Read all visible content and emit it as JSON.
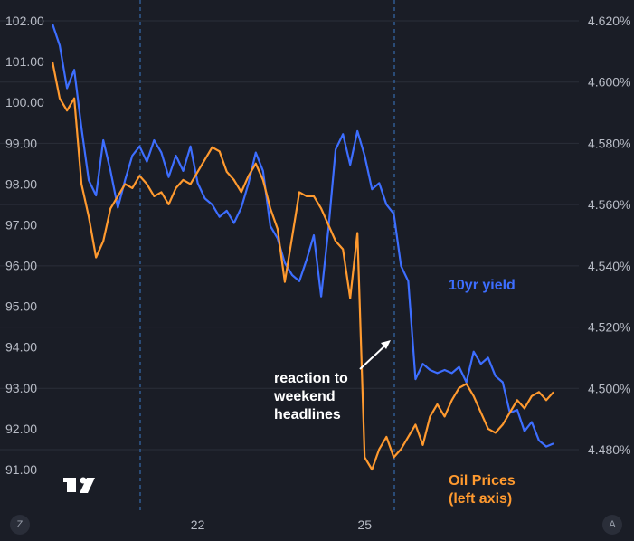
{
  "chart_data": {
    "type": "line",
    "x_ticks": [
      "22",
      "25"
    ],
    "y_left_ticks": [
      "102.00",
      "101.00",
      "100.00",
      "99.00",
      "98.00",
      "97.00",
      "96.00",
      "95.00",
      "94.00",
      "93.00",
      "92.00",
      "91.00"
    ],
    "y_right_ticks": [
      "4.620%",
      "4.600%",
      "4.580%",
      "4.560%",
      "4.540%",
      "4.520%",
      "4.500%",
      "4.480%"
    ],
    "y_left_range": [
      91.0,
      102.0
    ],
    "y_right_range": [
      4.48,
      4.62
    ],
    "grid": "horizontal",
    "session_breaks": "dashed vertical lines",
    "series": [
      {
        "name": "10yr yield",
        "axis": "right",
        "color": "#3d6eff",
        "values": [
          4.619,
          4.612,
          4.598,
          4.604,
          4.585,
          4.568,
          4.563,
          4.581,
          4.571,
          4.559,
          4.568,
          4.576,
          4.579,
          4.574,
          4.581,
          4.577,
          4.569,
          4.576,
          4.571,
          4.579,
          4.567,
          4.562,
          4.56,
          4.556,
          4.558,
          4.554,
          4.559,
          4.567,
          4.577,
          4.571,
          4.553,
          4.549,
          4.541,
          4.537,
          4.535,
          4.542,
          4.55,
          4.53,
          4.552,
          4.578,
          4.583,
          4.573,
          4.584,
          4.576,
          4.565,
          4.567,
          4.56,
          4.557,
          4.54,
          4.535,
          4.503,
          4.508,
          4.506,
          4.505,
          4.506,
          4.505,
          4.507,
          4.502,
          4.512,
          4.508,
          4.51,
          4.504,
          4.502,
          4.492,
          4.493,
          4.486,
          4.489,
          4.483,
          4.481,
          4.482
        ]
      },
      {
        "name": "Oil Prices",
        "axis": "left",
        "color": "#ff9a2f",
        "values": [
          101.0,
          100.1,
          99.8,
          100.1,
          98.0,
          97.2,
          96.2,
          96.6,
          97.4,
          97.7,
          98.0,
          97.9,
          98.2,
          98.0,
          97.7,
          97.8,
          97.5,
          97.9,
          98.1,
          98.0,
          98.3,
          98.6,
          98.9,
          98.8,
          98.3,
          98.1,
          97.8,
          98.2,
          98.5,
          98.1,
          97.4,
          96.9,
          95.6,
          96.7,
          97.8,
          97.7,
          97.7,
          97.4,
          97.0,
          96.6,
          96.4,
          95.2,
          96.8,
          91.3,
          91.0,
          91.5,
          91.8,
          91.3,
          91.5,
          91.8,
          92.1,
          91.6,
          92.3,
          92.6,
          92.3,
          92.7,
          93.0,
          93.1,
          92.8,
          92.4,
          92.0,
          91.9,
          92.1,
          92.4,
          92.7,
          92.5,
          92.8,
          92.9,
          92.7,
          92.9
        ]
      }
    ],
    "x_index_ticks": [
      20,
      43
    ],
    "annotations": [
      {
        "lines": [
          "reaction to",
          "weekend",
          "headlines"
        ],
        "arrow_to_index": 43
      }
    ],
    "series_labels": {
      "blue": [
        "10yr yield"
      ],
      "orange": [
        "Oil Prices",
        "(left axis)"
      ]
    }
  },
  "corner_left": "Z",
  "corner_right": "A",
  "colors": {
    "background": "#1a1d26",
    "grid": "#2a2e39",
    "blue": "#3d6eff",
    "orange": "#ff9a2f"
  },
  "logo_icon": "tradingview-logo-icon"
}
